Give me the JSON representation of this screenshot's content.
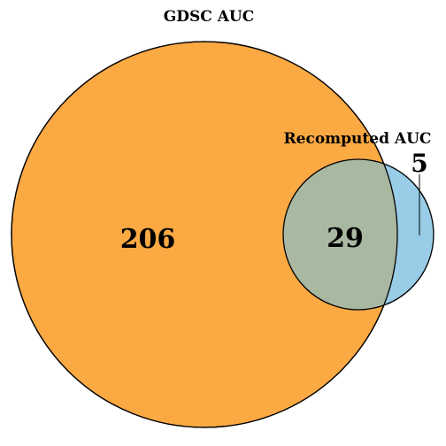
{
  "diagram": {
    "type": "venn",
    "sets": [
      {
        "label": "GDSC AUC",
        "color": "#FBA943"
      },
      {
        "label": "Recomputed AUC",
        "color": "#99CCE6"
      }
    ],
    "intersection_color": "#A9B8A1",
    "counts": {
      "only_a": "206",
      "both": "29",
      "only_b": "5"
    }
  }
}
